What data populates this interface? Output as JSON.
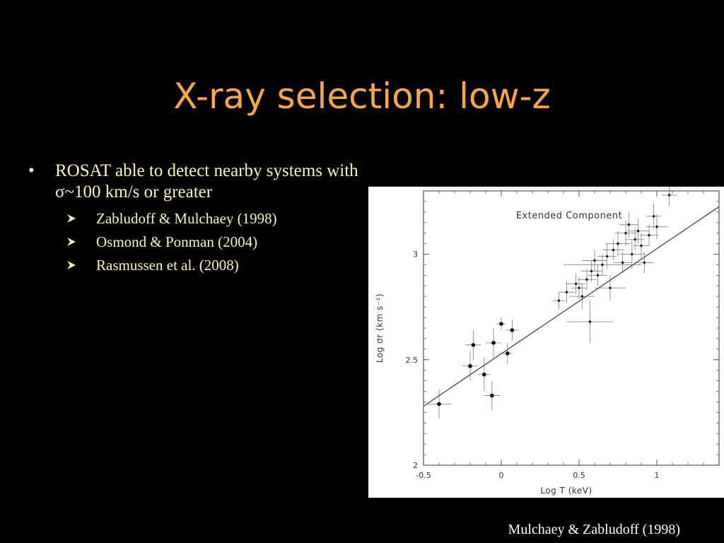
{
  "slide": {
    "title": "X-ray selection: low-z",
    "bullet": {
      "symbol": "•",
      "text": "ROSAT able to detect nearby systems with σ~100 km/s or greater",
      "subitems": [
        "Zabludoff & Mulchaey (1998)",
        "Osmond & Ponman (2004)",
        "Rasmussen et al. (2008)"
      ]
    },
    "caption": "Mulchaey & Zabludoff (1998)",
    "colors": {
      "background": "#000000",
      "title": "#f7a64a",
      "bullet_text": "#fbf4b8",
      "caption": "#ffffff"
    }
  },
  "chart_data": {
    "type": "scatter",
    "title": "Extended Component",
    "xlabel": "Log T (keV)",
    "ylabel": "Log σr (km s⁻¹)",
    "xlim": [
      -0.5,
      1.4
    ],
    "ylim": [
      2.0,
      3.3
    ],
    "xticks": [
      -0.5,
      0,
      0.5,
      1
    ],
    "xtick_labels": [
      "-0.5",
      "0",
      "0.5",
      "1"
    ],
    "yticks": [
      2,
      2.5,
      3
    ],
    "ytick_labels": [
      "2",
      "2.5",
      "3"
    ],
    "fit_line": {
      "x": [
        -0.6,
        1.45
      ],
      "y": [
        2.23,
        3.25
      ]
    },
    "groups": [
      {
        "name": "",
        "marker": "large-dot",
        "points": [
          {
            "x": -0.4,
            "y": 2.29,
            "xerr": 0.08,
            "yerr": 0.07
          },
          {
            "x": -0.2,
            "y": 2.47,
            "xerr": 0.05,
            "yerr": 0.07
          },
          {
            "x": -0.18,
            "y": 2.57,
            "xerr": 0.05,
            "yerr": 0.07
          },
          {
            "x": -0.11,
            "y": 2.43,
            "xerr": 0.04,
            "yerr": 0.08
          },
          {
            "x": -0.06,
            "y": 2.33,
            "xerr": 0.05,
            "yerr": 0.07
          },
          {
            "x": -0.05,
            "y": 2.58,
            "xerr": 0.05,
            "yerr": 0.07
          },
          {
            "x": 0.0,
            "y": 2.67,
            "xerr": 0.03,
            "yerr": 0.03
          },
          {
            "x": 0.04,
            "y": 2.53,
            "xerr": 0.03,
            "yerr": 0.05
          },
          {
            "x": 0.07,
            "y": 2.64,
            "xerr": 0.04,
            "yerr": 0.05
          }
        ]
      },
      {
        "name": "",
        "marker": "small-dot",
        "points": [
          {
            "x": 0.37,
            "y": 2.78,
            "xerr": 0.04,
            "yerr": 0.04
          },
          {
            "x": 0.42,
            "y": 2.82,
            "xerr": 0.05,
            "yerr": 0.05
          },
          {
            "x": 0.48,
            "y": 2.86,
            "xerr": 0.06,
            "yerr": 0.05
          },
          {
            "x": 0.5,
            "y": 2.84,
            "xerr": 0.05,
            "yerr": 0.05
          },
          {
            "x": 0.52,
            "y": 2.8,
            "xerr": 0.08,
            "yerr": 0.06
          },
          {
            "x": 0.55,
            "y": 2.88,
            "xerr": 0.06,
            "yerr": 0.05
          },
          {
            "x": 0.57,
            "y": 2.68,
            "xerr": 0.15,
            "yerr": 0.1
          },
          {
            "x": 0.58,
            "y": 2.92,
            "xerr": 0.07,
            "yerr": 0.05
          },
          {
            "x": 0.6,
            "y": 2.97,
            "xerr": 0.08,
            "yerr": 0.05
          },
          {
            "x": 0.62,
            "y": 2.9,
            "xerr": 0.06,
            "yerr": 0.05
          },
          {
            "x": 0.65,
            "y": 2.95,
            "xerr": 0.25,
            "yerr": 0.05
          },
          {
            "x": 0.68,
            "y": 2.99,
            "xerr": 0.06,
            "yerr": 0.06
          },
          {
            "x": 0.7,
            "y": 2.84,
            "xerr": 0.1,
            "yerr": 0.06
          },
          {
            "x": 0.72,
            "y": 3.02,
            "xerr": 0.07,
            "yerr": 0.05
          },
          {
            "x": 0.75,
            "y": 3.05,
            "xerr": 0.08,
            "yerr": 0.06
          },
          {
            "x": 0.78,
            "y": 2.96,
            "xerr": 0.06,
            "yerr": 0.05
          },
          {
            "x": 0.8,
            "y": 3.1,
            "xerr": 0.07,
            "yerr": 0.06
          },
          {
            "x": 0.82,
            "y": 3.14,
            "xerr": 0.06,
            "yerr": 0.06
          },
          {
            "x": 0.84,
            "y": 3.0,
            "xerr": 0.08,
            "yerr": 0.07
          },
          {
            "x": 0.86,
            "y": 3.07,
            "xerr": 0.06,
            "yerr": 0.05
          },
          {
            "x": 0.88,
            "y": 3.11,
            "xerr": 0.07,
            "yerr": 0.06
          },
          {
            "x": 0.9,
            "y": 3.04,
            "xerr": 0.05,
            "yerr": 0.06
          },
          {
            "x": 0.92,
            "y": 2.96,
            "xerr": 0.06,
            "yerr": 0.05
          },
          {
            "x": 0.95,
            "y": 3.09,
            "xerr": 0.06,
            "yerr": 0.05
          },
          {
            "x": 0.98,
            "y": 3.18,
            "xerr": 0.05,
            "yerr": 0.06
          },
          {
            "x": 1.0,
            "y": 3.13,
            "xerr": 0.07,
            "yerr": 0.06
          },
          {
            "x": 1.08,
            "y": 3.28,
            "xerr": 0.05,
            "yerr": 0.05
          }
        ]
      }
    ]
  }
}
